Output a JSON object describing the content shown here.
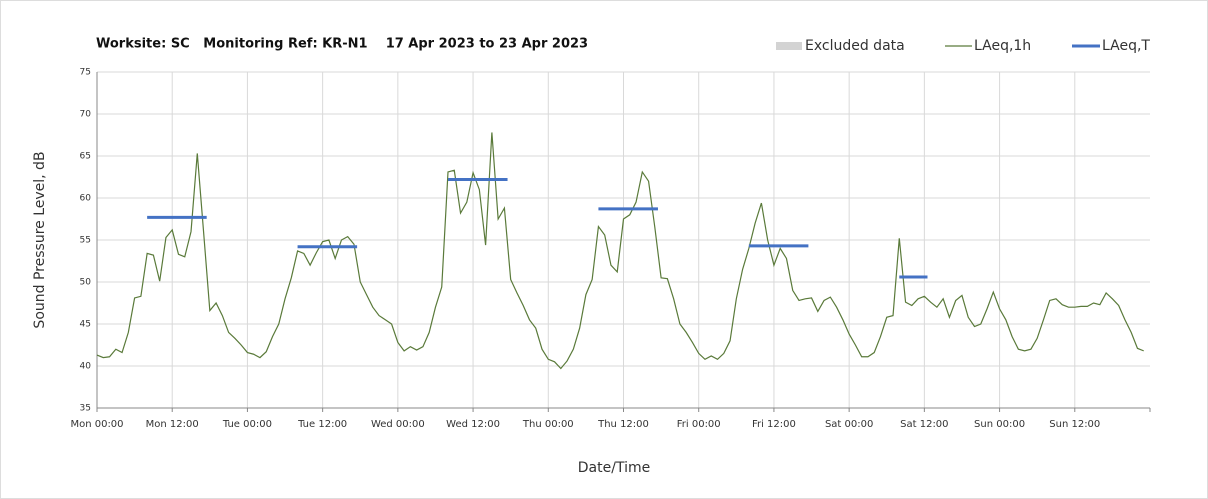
{
  "chart_data": {
    "type": "line",
    "title": "Worksite: SC   Monitoring Ref: KR-N1    17 Apr 2023 to 23 Apr 2023",
    "xlabel": "Date/Time",
    "ylabel": "Sound Pressure Level, dB",
    "xlim": [
      0,
      168
    ],
    "ylim": [
      35,
      75
    ],
    "yticks": [
      35,
      40,
      45,
      50,
      55,
      60,
      65,
      70,
      75
    ],
    "xticks": [
      {
        "value": 0,
        "label": "Mon 00:00"
      },
      {
        "value": 12,
        "label": "Mon 12:00"
      },
      {
        "value": 24,
        "label": "Tue 00:00"
      },
      {
        "value": 36,
        "label": "Tue 12:00"
      },
      {
        "value": 48,
        "label": "Wed 00:00"
      },
      {
        "value": 60,
        "label": "Wed 12:00"
      },
      {
        "value": 72,
        "label": "Thu 00:00"
      },
      {
        "value": 84,
        "label": "Thu 12:00"
      },
      {
        "value": 96,
        "label": "Fri 00:00"
      },
      {
        "value": 108,
        "label": "Fri 12:00"
      },
      {
        "value": 120,
        "label": "Sat 00:00"
      },
      {
        "value": 132,
        "label": "Sat 12:00"
      },
      {
        "value": 144,
        "label": "Sun 00:00"
      },
      {
        "value": 156,
        "label": "Sun 12:00"
      }
    ],
    "grid": true,
    "excluded_data": {
      "name": "Excluded data",
      "color": "#d3d3d3"
    },
    "series": [
      {
        "name": "LAeq,1h",
        "color": "#5a7a3a",
        "values": [
          41.3,
          41.0,
          41.1,
          42.0,
          41.6,
          44.0,
          48.1,
          48.3,
          53.4,
          53.2,
          50.1,
          55.3,
          56.2,
          53.3,
          53.0,
          56.0,
          65.3,
          56.0,
          46.6,
          47.5,
          46.0,
          44.0,
          43.3,
          42.5,
          41.6,
          41.4,
          41.0,
          41.7,
          43.5,
          45.0,
          48.0,
          50.5,
          53.7,
          53.4,
          52.0,
          53.5,
          54.8,
          55.0,
          52.8,
          55.0,
          55.4,
          54.5,
          50.0,
          48.5,
          47.0,
          46.0,
          45.5,
          45.0,
          42.8,
          41.8,
          42.3,
          41.9,
          42.3,
          44.0,
          47.0,
          49.4,
          63.1,
          63.3,
          58.2,
          59.5,
          63.0,
          61.0,
          54.4,
          67.8,
          57.5,
          58.8,
          50.3,
          48.7,
          47.2,
          45.5,
          44.5,
          42.0,
          40.8,
          40.5,
          39.7,
          40.6,
          42.0,
          44.5,
          48.5,
          50.3,
          56.6,
          55.6,
          52.0,
          51.2,
          57.5,
          58.0,
          59.5,
          63.1,
          62.0,
          56.5,
          50.5,
          50.4,
          48.0,
          45.0,
          44.0,
          42.8,
          41.5,
          40.8,
          41.2,
          40.8,
          41.5,
          43.0,
          48.0,
          51.5,
          54.0,
          57.0,
          59.4,
          55.0,
          52.0,
          54.0,
          52.8,
          49.0,
          47.8,
          48.0,
          48.1,
          46.5,
          47.8,
          48.2,
          47.0,
          45.5,
          43.8,
          42.5,
          41.1,
          41.1,
          41.6,
          43.5,
          45.8,
          46.0,
          55.2,
          47.6,
          47.2,
          48.0,
          48.3,
          47.6,
          47.0,
          48.0,
          45.8,
          47.8,
          48.4,
          45.8,
          44.7,
          45.0,
          46.8,
          48.8,
          46.8,
          45.5,
          43.5,
          42.0,
          41.8,
          42.0,
          43.3,
          45.5,
          47.8,
          48.0,
          47.3,
          47.0,
          47.0,
          47.1,
          47.1,
          47.5,
          47.3,
          48.7,
          48.0,
          47.2,
          45.5,
          44.0,
          42.1,
          41.8
        ]
      },
      {
        "name": "LAeq,T",
        "color": "#4472c4",
        "values": [
          57.7,
          54.2,
          62.2,
          58.7,
          54.3,
          50.6
        ],
        "x_start": [
          8,
          32,
          56,
          80,
          104,
          128
        ],
        "x_end": [
          17.5,
          41.5,
          65.5,
          89.5,
          113.5,
          132.5
        ]
      }
    ]
  }
}
